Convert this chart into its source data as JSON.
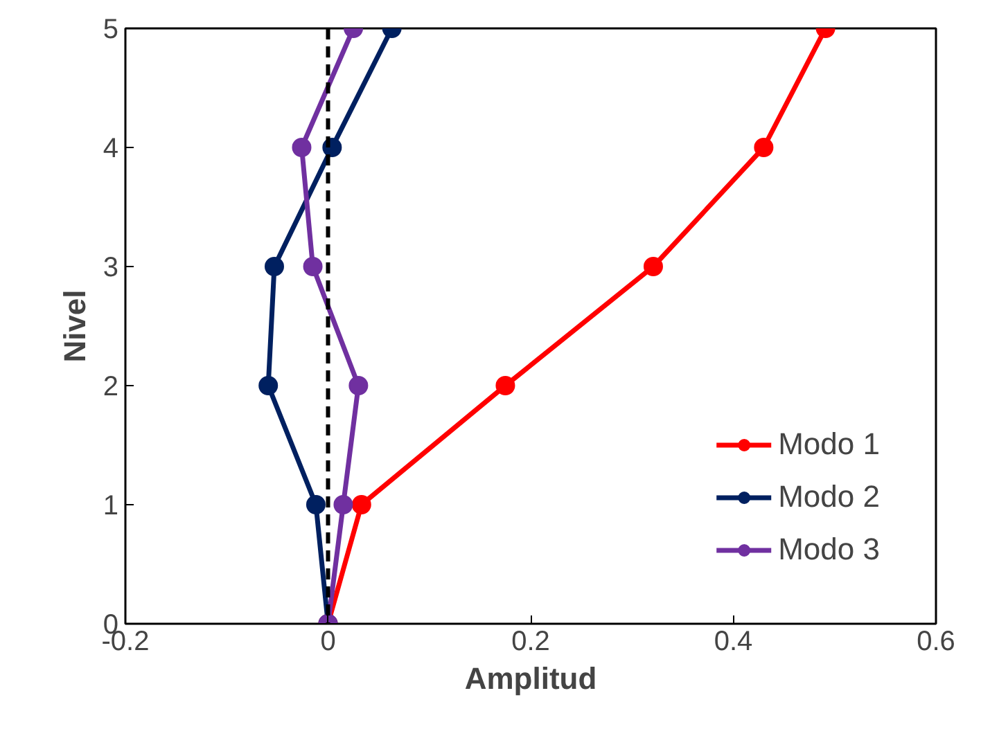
{
  "chart_data": {
    "type": "line",
    "xlabel": "Amplitud",
    "ylabel": "Nivel",
    "xlim": [
      -0.2,
      0.6
    ],
    "xticks": [
      -0.2,
      0,
      0.2,
      0.4,
      0.6
    ],
    "ylim": [
      0,
      5
    ],
    "yticks": [
      0,
      1,
      2,
      3,
      4,
      5
    ],
    "series": [
      {
        "name": "Modo 1",
        "color": "#ff0000",
        "x": [
          0,
          0.033,
          0.175,
          0.321,
          0.43,
          0.491
        ],
        "values": [
          0,
          1,
          2,
          3,
          4,
          5
        ]
      },
      {
        "name": "Modo 2",
        "color": "#002060",
        "x": [
          0,
          -0.012,
          -0.059,
          -0.053,
          0.004,
          0.063
        ],
        "values": [
          0,
          1,
          2,
          3,
          4,
          5
        ]
      },
      {
        "name": "Modo 3",
        "color": "#7030a0",
        "x": [
          0,
          0.015,
          0.03,
          -0.015,
          -0.026,
          0.025
        ],
        "values": [
          0,
          1,
          2,
          3,
          4,
          5
        ]
      }
    ],
    "ref_lines": [
      {
        "axis": "x",
        "value": 0,
        "color": "#000000",
        "line_style": "dashed"
      }
    ],
    "marker": "circle",
    "line_style": "solid",
    "grid": false,
    "legend": "bottom right"
  }
}
